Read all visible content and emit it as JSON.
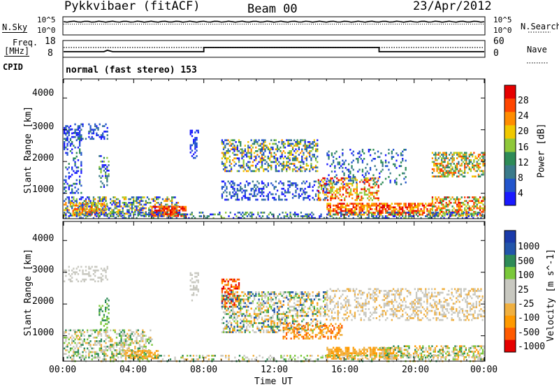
{
  "header": {
    "radar": "Pykkvibaer (fitACF)",
    "beam": "Beam 00",
    "date": "23/Apr/2012"
  },
  "noise_panel": {
    "left_label": "N.Sky",
    "left_ticks": [
      "10^5",
      "10^0"
    ],
    "right_ticks": [
      "10^5",
      "10^0"
    ],
    "right_label": "N.Search"
  },
  "freq_panel": {
    "left_label_1": "Freq.",
    "left_label_2": "[MHz]",
    "left_ticks": [
      "18",
      "8"
    ],
    "right_ticks": [
      "60",
      "0"
    ],
    "right_label": "Nave"
  },
  "cpid": {
    "label": "CPID",
    "value": "normal (fast stereo) 153"
  },
  "colors": {
    "power_scale": [
      "#1a1aff",
      "#2255cc",
      "#3a7a8a",
      "#2e8b57",
      "#8fc83a",
      "#f0c800",
      "#ff8c00",
      "#ff4500",
      "#e60000"
    ],
    "velocity_scale": [
      "#e60000",
      "#ff5a00",
      "#ff9a00",
      "#f0b040",
      "#c8c8c0",
      "#c8c8c0",
      "#7ac83a",
      "#2e8b57",
      "#2255aa",
      "#1a3aaa"
    ]
  },
  "chart_data": [
    {
      "type": "heatmap",
      "title": "Power",
      "ylabel": "Slant Range [km]",
      "xlabel": "",
      "x_ticks": [
        "00:00",
        "04:00",
        "08:00",
        "12:00",
        "16:00",
        "20:00",
        "00:00"
      ],
      "y_ticks": [
        "1000",
        "2000",
        "3000",
        "4000"
      ],
      "ylim": [
        200,
        4600
      ],
      "xlim_hours": [
        0,
        24
      ],
      "colorbar_label": "Power [dB]",
      "colorbar_ticks": [
        "4",
        "8",
        "12",
        "16",
        "20",
        "24",
        "28"
      ],
      "colorbar_range": [
        0,
        30
      ]
    },
    {
      "type": "heatmap",
      "title": "Velocity",
      "ylabel": "Slant Range [km]",
      "xlabel": "Time UT",
      "x_ticks": [
        "00:00",
        "04:00",
        "08:00",
        "12:00",
        "16:00",
        "20:00",
        "00:00"
      ],
      "y_ticks": [
        "1000",
        "2000",
        "3000",
        "4000"
      ],
      "ylim": [
        200,
        4600
      ],
      "xlim_hours": [
        0,
        24
      ],
      "colorbar_label": "Velocity [m s^-1]",
      "colorbar_ticks": [
        "1000",
        "500",
        "100",
        "25",
        "-25",
        "-100",
        "-500",
        "-1000"
      ]
    }
  ]
}
